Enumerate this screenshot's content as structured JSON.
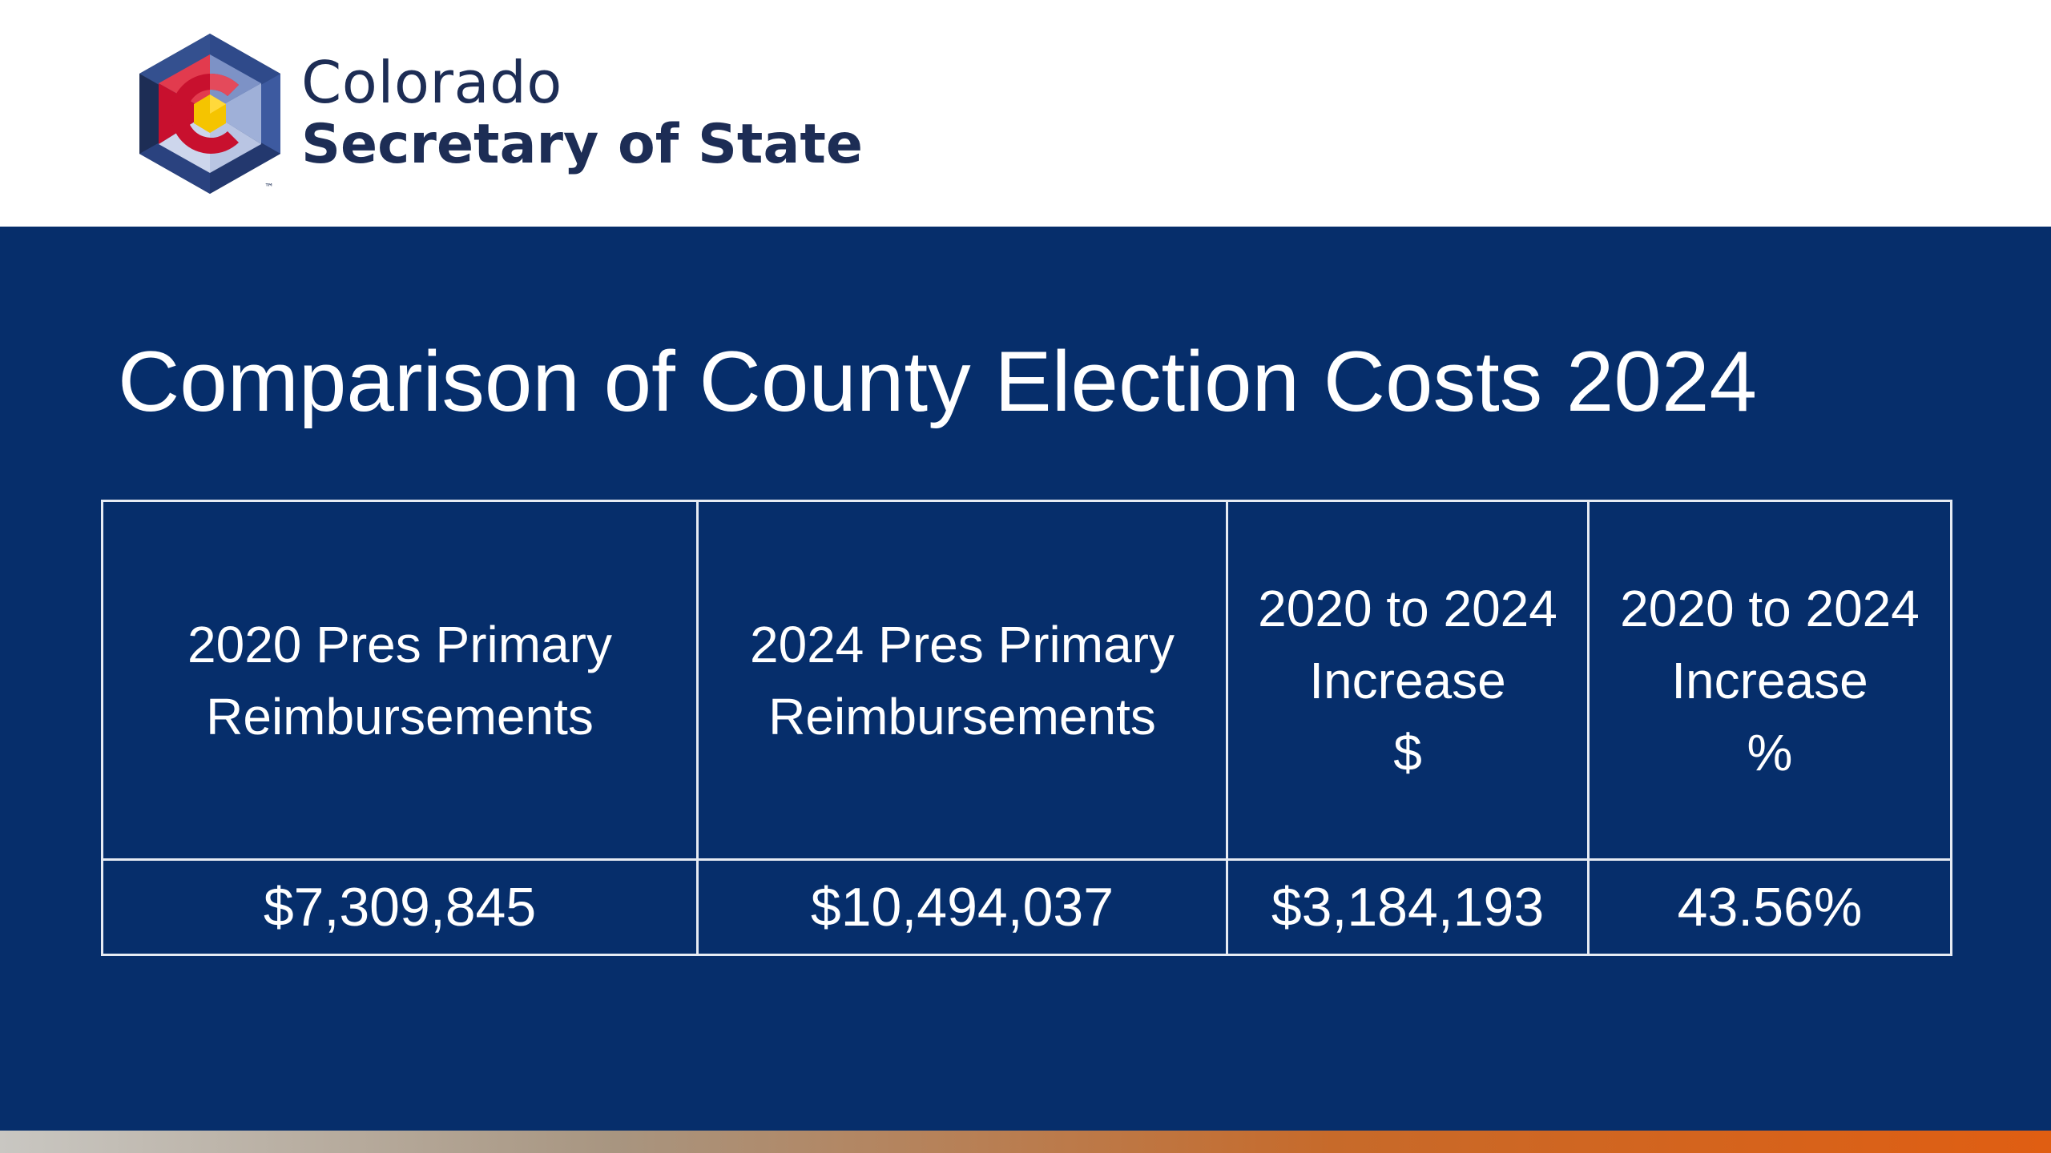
{
  "logo": {
    "name_line1": "Colorado",
    "name_line2": "Secretary of State",
    "trademark": "™"
  },
  "slide": {
    "title": "Comparison of County Election Costs 2024"
  },
  "table": {
    "headers": [
      [
        "2020 Pres Primary",
        "Reimbursements"
      ],
      [
        "2024 Pres Primary",
        "Reimbursements"
      ],
      [
        "2020 to 2024",
        "Increase",
        "$"
      ],
      [
        "2020 to 2024",
        "Increase",
        "%"
      ]
    ],
    "rows": [
      [
        "$7,309,845",
        "$10,494,037",
        "$3,184,193",
        "43.56%"
      ]
    ]
  },
  "colors": {
    "brand_navy": "#062e6b",
    "logo_text": "#1d2d55",
    "accent_orange": "#e05e12",
    "flag_red": "#c8102e",
    "flag_gold": "#f5c400"
  }
}
